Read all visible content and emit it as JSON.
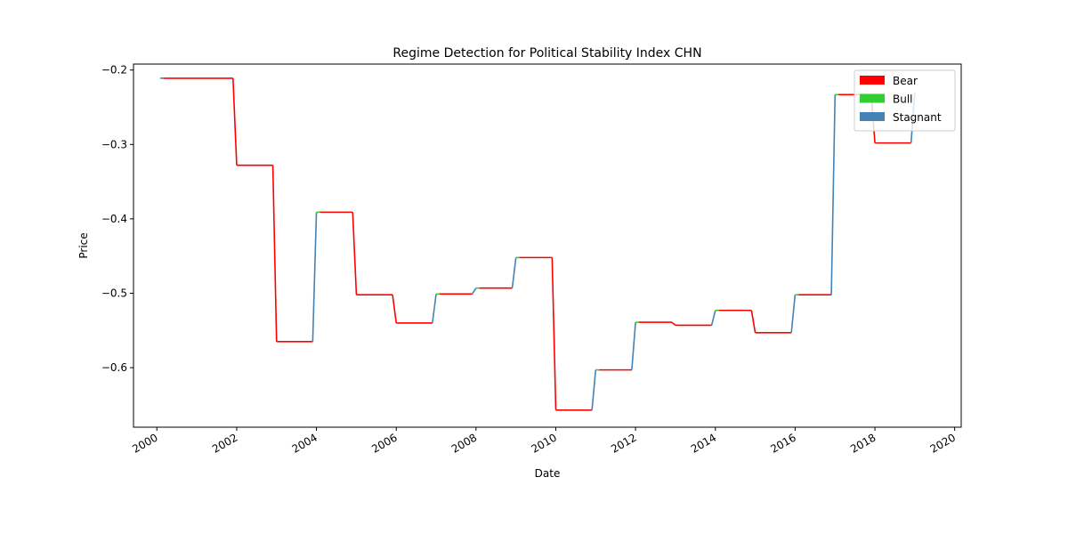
{
  "chart_data": {
    "type": "line",
    "title": "Regime Detection for Political Stability Index CHN",
    "xlabel": "Date",
    "ylabel": "Price",
    "xlim": [
      "1999-06-01",
      "2020-03-01"
    ],
    "ylim": [
      -0.68,
      -0.192
    ],
    "x_ticks": [
      "2000",
      "2002",
      "2004",
      "2006",
      "2008",
      "2010",
      "2012",
      "2014",
      "2016",
      "2018",
      "2020"
    ],
    "y_ticks": [
      -0.6,
      -0.5,
      -0.4,
      -0.3,
      -0.2
    ],
    "y_tick_labels": [
      "−0.6",
      "−0.5",
      "−0.4",
      "−0.3",
      "−0.2"
    ],
    "grid": false,
    "legend_position": "top-right",
    "legend": [
      {
        "name": "Bear",
        "color": "#ff0000"
      },
      {
        "name": "Bull",
        "color": "#32cd32"
      },
      {
        "name": "Stagnant",
        "color": "#4682b4"
      }
    ],
    "points": [
      {
        "date": "2000-02-01",
        "value": -0.211,
        "regime": "Stagnant"
      },
      {
        "date": "2000-03-01",
        "value": -0.211,
        "regime": "Bear"
      },
      {
        "date": "2001-11-28",
        "value": -0.211,
        "regime": "Bear"
      },
      {
        "date": "2002-01-01",
        "value": -0.328,
        "regime": "Bear"
      },
      {
        "date": "2002-11-28",
        "value": -0.328,
        "regime": "Bear"
      },
      {
        "date": "2003-01-01",
        "value": -0.565,
        "regime": "Bear"
      },
      {
        "date": "2003-11-28",
        "value": -0.565,
        "regime": "Stagnant"
      },
      {
        "date": "2004-01-01",
        "value": -0.391,
        "regime": "Bull"
      },
      {
        "date": "2004-02-01",
        "value": -0.391,
        "regime": "Bear"
      },
      {
        "date": "2004-11-28",
        "value": -0.391,
        "regime": "Bear"
      },
      {
        "date": "2005-01-01",
        "value": -0.502,
        "regime": "Bear"
      },
      {
        "date": "2005-11-28",
        "value": -0.502,
        "regime": "Bear"
      },
      {
        "date": "2006-01-01",
        "value": -0.54,
        "regime": "Bear"
      },
      {
        "date": "2006-11-28",
        "value": -0.54,
        "regime": "Stagnant"
      },
      {
        "date": "2007-01-01",
        "value": -0.501,
        "regime": "Bull"
      },
      {
        "date": "2007-02-01",
        "value": -0.501,
        "regime": "Bear"
      },
      {
        "date": "2007-11-28",
        "value": -0.501,
        "regime": "Stagnant"
      },
      {
        "date": "2008-01-01",
        "value": -0.493,
        "regime": "Bull"
      },
      {
        "date": "2008-02-01",
        "value": -0.493,
        "regime": "Bear"
      },
      {
        "date": "2008-11-28",
        "value": -0.493,
        "regime": "Stagnant"
      },
      {
        "date": "2009-01-01",
        "value": -0.452,
        "regime": "Bull"
      },
      {
        "date": "2009-02-01",
        "value": -0.452,
        "regime": "Bear"
      },
      {
        "date": "2009-11-28",
        "value": -0.452,
        "regime": "Bear"
      },
      {
        "date": "2010-01-01",
        "value": -0.657,
        "regime": "Bear"
      },
      {
        "date": "2010-11-28",
        "value": -0.657,
        "regime": "Stagnant"
      },
      {
        "date": "2011-01-01",
        "value": -0.603,
        "regime": "Bull"
      },
      {
        "date": "2011-02-01",
        "value": -0.603,
        "regime": "Bear"
      },
      {
        "date": "2011-11-28",
        "value": -0.603,
        "regime": "Stagnant"
      },
      {
        "date": "2012-01-01",
        "value": -0.539,
        "regime": "Bull"
      },
      {
        "date": "2012-02-01",
        "value": -0.539,
        "regime": "Bear"
      },
      {
        "date": "2012-11-28",
        "value": -0.539,
        "regime": "Bear"
      },
      {
        "date": "2013-01-01",
        "value": -0.543,
        "regime": "Bear"
      },
      {
        "date": "2013-11-28",
        "value": -0.543,
        "regime": "Stagnant"
      },
      {
        "date": "2014-01-01",
        "value": -0.523,
        "regime": "Bull"
      },
      {
        "date": "2014-02-01",
        "value": -0.523,
        "regime": "Bear"
      },
      {
        "date": "2014-11-28",
        "value": -0.523,
        "regime": "Bear"
      },
      {
        "date": "2015-01-01",
        "value": -0.553,
        "regime": "Bear"
      },
      {
        "date": "2015-11-28",
        "value": -0.553,
        "regime": "Stagnant"
      },
      {
        "date": "2016-01-01",
        "value": -0.502,
        "regime": "Bull"
      },
      {
        "date": "2016-02-01",
        "value": -0.502,
        "regime": "Bear"
      },
      {
        "date": "2016-11-28",
        "value": -0.502,
        "regime": "Stagnant"
      },
      {
        "date": "2017-01-01",
        "value": -0.233,
        "regime": "Bull"
      },
      {
        "date": "2017-02-01",
        "value": -0.233,
        "regime": "Bear"
      },
      {
        "date": "2017-11-28",
        "value": -0.233,
        "regime": "Bear"
      },
      {
        "date": "2018-01-01",
        "value": -0.298,
        "regime": "Bear"
      },
      {
        "date": "2018-11-28",
        "value": -0.298,
        "regime": "Stagnant"
      },
      {
        "date": "2019-01-01",
        "value": -0.23,
        "regime": "Stagnant"
      }
    ]
  }
}
